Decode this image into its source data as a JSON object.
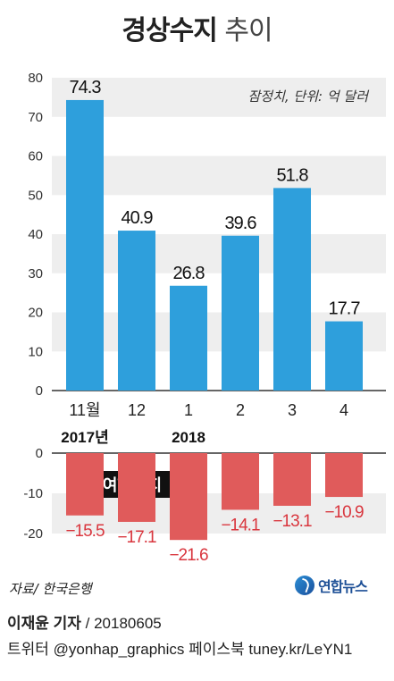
{
  "title": {
    "bold": "경상수지",
    "light": "추이"
  },
  "chart_data": [
    {
      "type": "bar",
      "title": "경상수지 추이",
      "annotation": "잠정치, 단위: 억 달러",
      "categories": [
        "11월",
        "12",
        "1",
        "2",
        "3",
        "4"
      ],
      "year_labels": [
        {
          "category": "11월",
          "text": "2017년"
        },
        {
          "category": "1",
          "text": "2018"
        }
      ],
      "values": [
        74.3,
        40.9,
        26.8,
        39.6,
        51.8,
        17.7
      ],
      "value_labels": [
        "74.3",
        "40.9",
        "26.8",
        "39.6",
        "51.8",
        "17.7"
      ],
      "ylim": [
        0,
        80
      ],
      "yticks": [
        "0",
        "10",
        "20",
        "30",
        "40",
        "50",
        "60",
        "70",
        "80"
      ],
      "grid": "alternating bands",
      "bar_color": "#2e9fdc"
    },
    {
      "type": "bar",
      "title": "여행수지",
      "categories": [
        "11월",
        "12",
        "1",
        "2",
        "3",
        "4"
      ],
      "values": [
        -15.5,
        -17.1,
        -21.6,
        -14.1,
        -13.1,
        -10.9
      ],
      "value_labels": [
        "−15.5",
        "−17.1",
        "−21.6",
        "−14.1",
        "−13.1",
        "−10.9"
      ],
      "ylim": [
        -20,
        0
      ],
      "yticks": [
        "0",
        "-10",
        "-20"
      ],
      "bar_color": "#e05b5b",
      "label_color": "#d9363e"
    }
  ],
  "source": "자료/ 한국은행",
  "logo_text": "연합뉴스",
  "credit": {
    "name": "이재윤 기자",
    "date": " / 20180605"
  },
  "social": "트위터 @yonhap_graphics  페이스북 tuney.kr/LeYN1"
}
